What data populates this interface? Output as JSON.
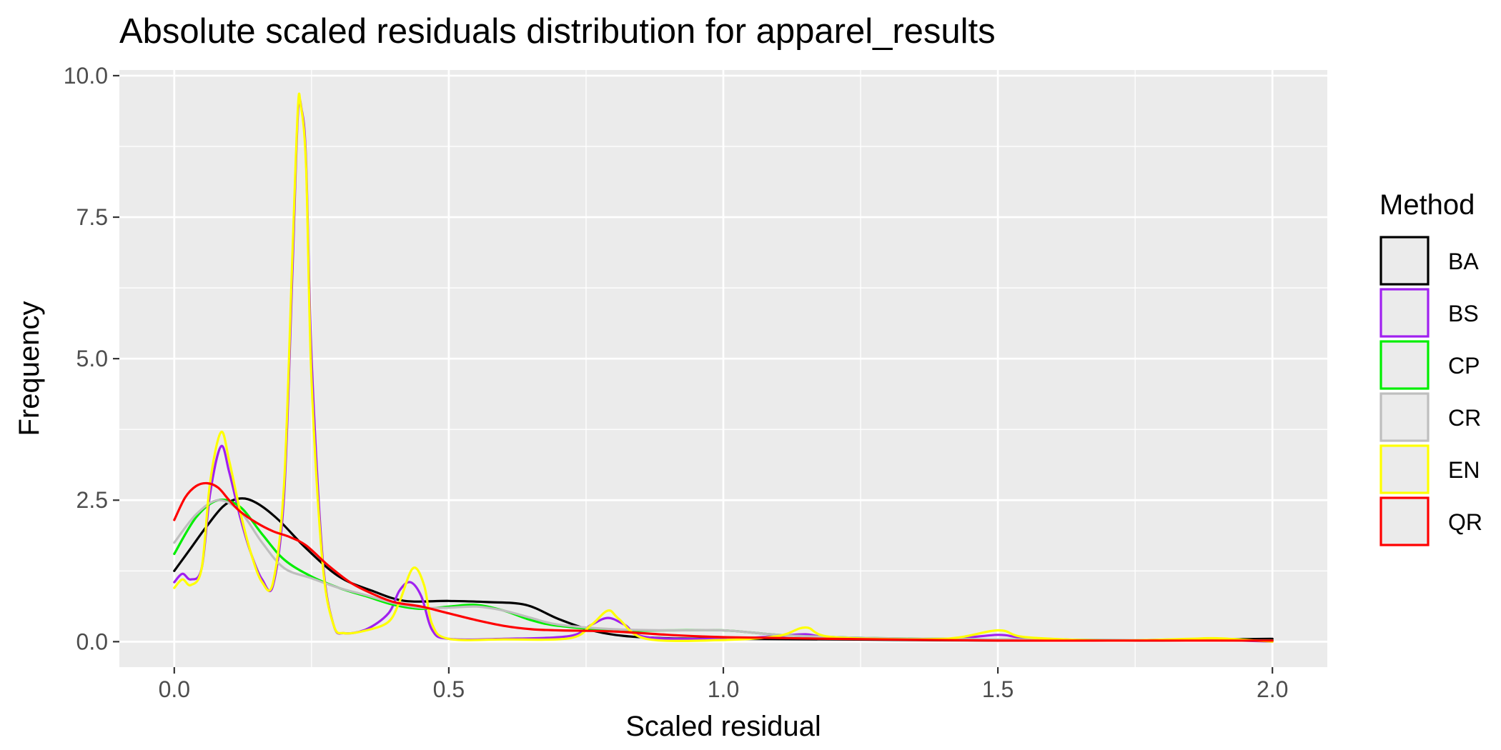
{
  "chart_data": {
    "type": "line",
    "title": "Absolute scaled residuals distribution for apparel_results",
    "xlabel": "Scaled residual",
    "ylabel": "Frequency",
    "xlim": [
      -0.1,
      2.1
    ],
    "ylim": [
      -0.45,
      10.1
    ],
    "x_ticks": [
      0.0,
      0.5,
      1.0,
      1.5,
      2.0
    ],
    "x_tick_labels": [
      "0.0",
      "0.5",
      "1.0",
      "1.5",
      "2.0"
    ],
    "y_ticks": [
      0.0,
      2.5,
      5.0,
      7.5,
      10.0
    ],
    "y_tick_labels": [
      "0.0",
      "2.5",
      "5.0",
      "7.5",
      "10.0"
    ],
    "grid": true,
    "background": "#ebebeb",
    "legend": {
      "title": "Method",
      "position": "right"
    },
    "series": [
      {
        "name": "BA",
        "color": "#000000",
        "x": [
          0.0,
          0.03,
          0.06,
          0.09,
          0.12,
          0.15,
          0.19,
          0.24,
          0.3,
          0.36,
          0.42,
          0.5,
          0.57,
          0.64,
          0.7,
          0.76,
          0.82,
          0.9,
          1.0,
          1.2,
          1.5,
          1.8,
          1.9,
          2.0
        ],
        "y": [
          1.25,
          1.65,
          2.05,
          2.4,
          2.53,
          2.45,
          2.15,
          1.65,
          1.15,
          0.9,
          0.72,
          0.72,
          0.7,
          0.65,
          0.4,
          0.2,
          0.1,
          0.06,
          0.05,
          0.04,
          0.02,
          0.02,
          0.04,
          0.05
        ]
      },
      {
        "name": "BS",
        "color": "#a020f0",
        "x": [
          0.0,
          0.015,
          0.03,
          0.05,
          0.065,
          0.085,
          0.1,
          0.12,
          0.14,
          0.16,
          0.18,
          0.2,
          0.215,
          0.225,
          0.232,
          0.24,
          0.25,
          0.27,
          0.29,
          0.31,
          0.35,
          0.39,
          0.41,
          0.43,
          0.45,
          0.47,
          0.5,
          0.6,
          0.72,
          0.76,
          0.79,
          0.82,
          0.86,
          1.0,
          1.1,
          1.15,
          1.2,
          1.4,
          1.5,
          1.55,
          1.7,
          1.85,
          2.0
        ],
        "y": [
          1.05,
          1.2,
          1.1,
          1.3,
          2.6,
          3.45,
          3.0,
          2.2,
          1.55,
          1.1,
          1.0,
          2.6,
          6.5,
          9.3,
          9.4,
          8.5,
          5.0,
          1.5,
          0.3,
          0.15,
          0.22,
          0.5,
          0.9,
          1.05,
          0.8,
          0.2,
          0.05,
          0.05,
          0.1,
          0.3,
          0.42,
          0.3,
          0.08,
          0.05,
          0.1,
          0.13,
          0.08,
          0.05,
          0.12,
          0.07,
          0.02,
          0.04,
          0.0
        ]
      },
      {
        "name": "CP",
        "color": "#00ee00",
        "x": [
          0.0,
          0.04,
          0.08,
          0.12,
          0.16,
          0.2,
          0.25,
          0.3,
          0.35,
          0.4,
          0.45,
          0.5,
          0.55,
          0.6,
          0.65,
          0.7,
          0.8,
          0.9,
          1.0,
          1.1,
          1.2,
          1.3,
          1.5,
          1.7,
          2.0
        ],
        "y": [
          1.55,
          2.2,
          2.5,
          2.38,
          1.9,
          1.45,
          1.15,
          0.95,
          0.8,
          0.65,
          0.58,
          0.62,
          0.65,
          0.55,
          0.38,
          0.28,
          0.2,
          0.2,
          0.2,
          0.12,
          0.08,
          0.06,
          0.04,
          0.03,
          0.02
        ]
      },
      {
        "name": "CR",
        "color": "#bebebe",
        "x": [
          0.0,
          0.04,
          0.08,
          0.12,
          0.16,
          0.2,
          0.25,
          0.3,
          0.35,
          0.4,
          0.45,
          0.5,
          0.55,
          0.6,
          0.65,
          0.7,
          0.8,
          0.9,
          1.0,
          1.1,
          1.2,
          1.3,
          1.5,
          1.7,
          2.0
        ],
        "y": [
          1.75,
          2.25,
          2.5,
          2.3,
          1.75,
          1.3,
          1.12,
          0.95,
          0.82,
          0.68,
          0.6,
          0.6,
          0.62,
          0.55,
          0.42,
          0.3,
          0.22,
          0.2,
          0.2,
          0.12,
          0.08,
          0.06,
          0.04,
          0.03,
          0.02
        ]
      },
      {
        "name": "EN",
        "color": "#ffff00",
        "x": [
          0.0,
          0.015,
          0.03,
          0.05,
          0.065,
          0.085,
          0.1,
          0.12,
          0.14,
          0.16,
          0.18,
          0.2,
          0.215,
          0.225,
          0.23,
          0.24,
          0.25,
          0.27,
          0.29,
          0.31,
          0.35,
          0.39,
          0.41,
          0.435,
          0.455,
          0.47,
          0.5,
          0.6,
          0.72,
          0.76,
          0.79,
          0.81,
          0.86,
          1.0,
          1.1,
          1.15,
          1.2,
          1.4,
          1.5,
          1.55,
          1.7,
          1.85,
          1.9,
          2.0
        ],
        "y": [
          0.95,
          1.1,
          1.0,
          1.3,
          2.8,
          3.7,
          3.2,
          2.3,
          1.55,
          1.05,
          1.05,
          2.8,
          6.8,
          9.4,
          9.5,
          8.4,
          4.6,
          1.4,
          0.3,
          0.15,
          0.2,
          0.35,
          0.7,
          1.3,
          1.0,
          0.3,
          0.05,
          0.04,
          0.06,
          0.3,
          0.55,
          0.4,
          0.05,
          0.03,
          0.1,
          0.25,
          0.08,
          0.05,
          0.2,
          0.08,
          0.02,
          0.05,
          0.06,
          0.0
        ]
      },
      {
        "name": "QR",
        "color": "#ff0000",
        "x": [
          0.0,
          0.02,
          0.04,
          0.06,
          0.08,
          0.1,
          0.12,
          0.15,
          0.18,
          0.21,
          0.24,
          0.28,
          0.32,
          0.36,
          0.4,
          0.45,
          0.5,
          0.55,
          0.6,
          0.65,
          0.7,
          0.8,
          0.9,
          1.0,
          1.2,
          1.5,
          1.7,
          2.0
        ],
        "y": [
          2.15,
          2.55,
          2.75,
          2.8,
          2.72,
          2.5,
          2.3,
          2.1,
          1.95,
          1.85,
          1.7,
          1.35,
          1.05,
          0.85,
          0.7,
          0.62,
          0.5,
          0.38,
          0.28,
          0.22,
          0.2,
          0.18,
          0.12,
          0.08,
          0.05,
          0.02,
          0.02,
          0.02
        ]
      }
    ]
  }
}
